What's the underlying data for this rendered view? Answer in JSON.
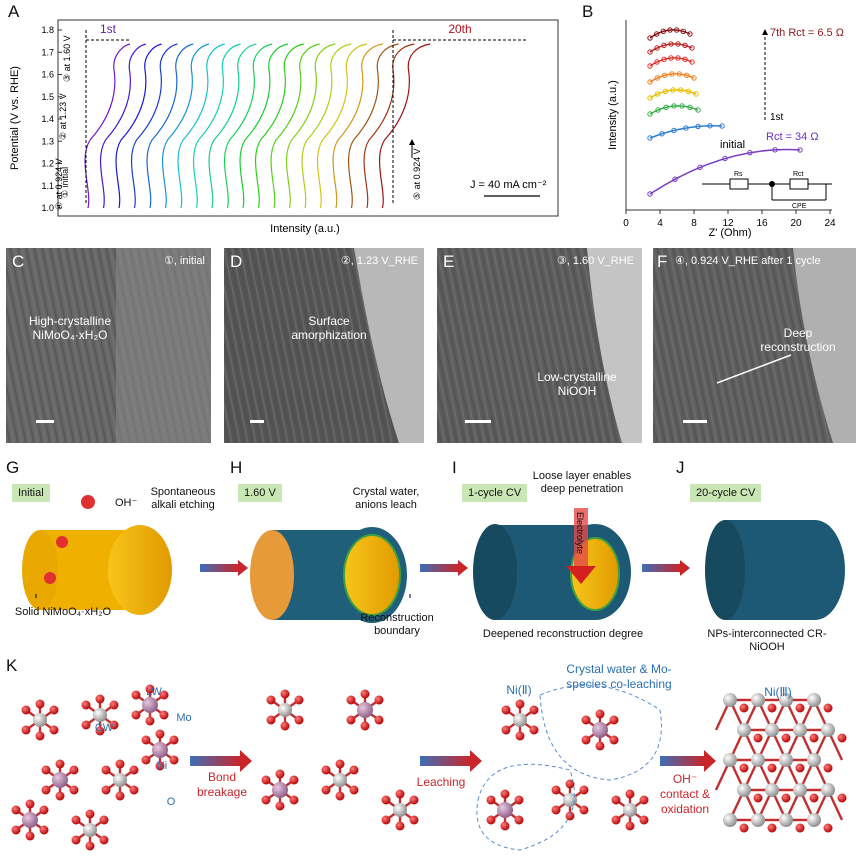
{
  "panels": {
    "A": "A",
    "B": "B",
    "C": "C",
    "D": "D",
    "E": "E",
    "F": "F",
    "G": "G",
    "H": "H",
    "I": "I",
    "J": "J",
    "K": "K"
  },
  "chart_a": {
    "ylabel": "Potential (V vs. RHE)",
    "xlabel": "Intensity (a.u.)",
    "yticks": [
      "1.0",
      "1.1",
      "1.2",
      "1.3",
      "1.4",
      "1.5",
      "1.6",
      "1.7",
      "1.8"
    ],
    "cycle_first": "1st",
    "cycle_last": "20th",
    "current_density": "J = 40 mA cm⁻²",
    "markers": {
      "m1": "① initial",
      "m2": "② at 1.23 V",
      "m3": "③ at 1.60 V",
      "m4": "④ at 0.924 V",
      "m5": "⑤ at 0.924 V"
    }
  },
  "chart_b": {
    "ylabel": "Intensity (a.u.)",
    "xlabel": "Z' (Ohm)",
    "xticks": [
      "0",
      "4",
      "8",
      "12",
      "16",
      "20",
      "24"
    ],
    "top_label": "7th Rct = 6.5 Ω",
    "first_label": "1st",
    "bottom_label": "Rct = 34 Ω",
    "initial_label": "initial",
    "circuit": {
      "rs": "Rs",
      "rct": "Rct",
      "cpe": "CPE"
    }
  },
  "tem": {
    "C": {
      "label": "①, initial",
      "caption": "High-crystalline NiMoO₄·xH₂O"
    },
    "D": {
      "label": "②, 1.23 V_RHE",
      "caption": "Surface amorphization"
    },
    "E": {
      "label": "③, 1.60 V_RHE",
      "caption": "Low-crystalline NiOOH"
    },
    "F": {
      "label": "④, 0.924 V_RHE after 1 cycle",
      "caption": "Deep reconstruction"
    }
  },
  "schematic": {
    "G": {
      "tag": "Initial",
      "oh": "OH⁻",
      "etch": "Spontaneous alkali etching",
      "solid": "Solid NiMoO₄·xH₂O"
    },
    "H": {
      "tag": "1.60 V",
      "leach": "Crystal water, anions leach",
      "boundary": "Reconstruction boundary"
    },
    "I": {
      "tag": "1-cycle CV",
      "loose": "Loose layer enables deep penetration",
      "electrolyte": "Electrolyte",
      "deepened": "Deepened reconstruction degree"
    },
    "J": {
      "tag": "20-cycle CV",
      "nps": "NPs-interconnected CR-NiOOH"
    }
  },
  "atomic": {
    "lw": "LW",
    "mo": "Mo",
    "cw": "CW",
    "ni": "Ni",
    "o": "O",
    "bond": "Bond breakage",
    "leaching": "Leaching",
    "ni2": "Ni(Ⅱ)",
    "coleach": "Crystal water & Mo-species co-leaching",
    "oh_contact": "OH⁻ contact & oxidation",
    "ni3": "Ni(Ⅲ)"
  },
  "colors": {
    "cycle_start": "#5b1fa8",
    "cycle_end": "#b3121c",
    "tag_bg": "#c9e7b4",
    "pellet": "#f2b400",
    "shell": "#1f5f7a",
    "accent_blue": "#2a6fb0",
    "accent_red": "#c8262b"
  }
}
